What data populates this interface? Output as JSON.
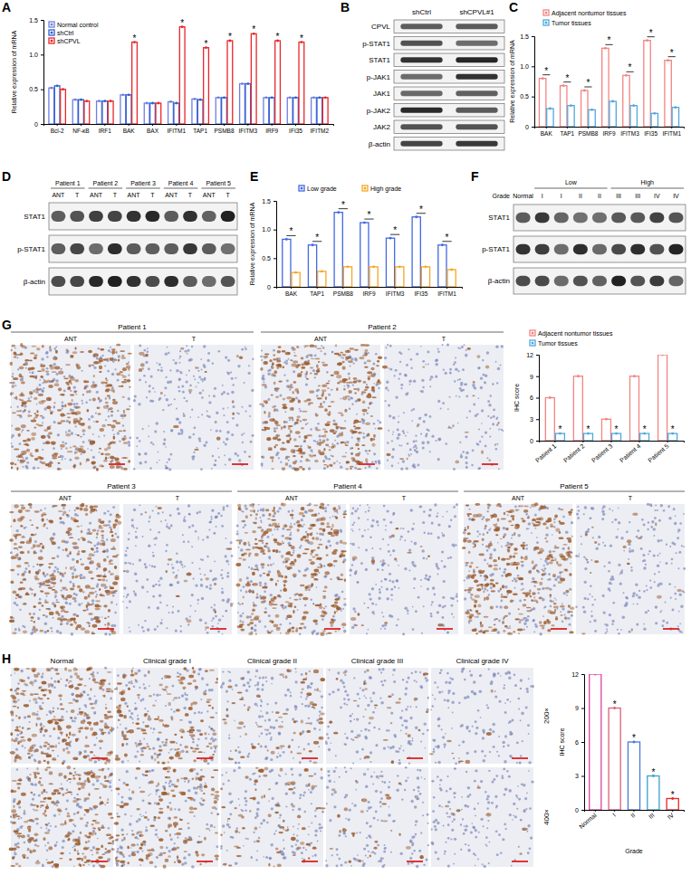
{
  "panel_labels": [
    "A",
    "B",
    "C",
    "D",
    "E",
    "F",
    "G",
    "H"
  ],
  "chart_data": [
    {
      "type": "bar",
      "categories": [
        "Bcl-2",
        "NF-κB",
        "IRF1",
        "BAK",
        "BAX",
        "IFITM1",
        "TAP1",
        "PSMB8",
        "IFITM3",
        "IRF9",
        "IFI35",
        "IFITM2"
      ],
      "series": [
        {
          "name": "Normal control",
          "color": "#6f7fe0",
          "values": [
            0.52,
            0.35,
            0.33,
            0.42,
            0.3,
            0.32,
            0.36,
            0.38,
            0.58,
            0.38,
            0.38,
            0.38
          ]
        },
        {
          "name": "shCtrl",
          "color": "#2f5fd0",
          "values": [
            0.55,
            0.35,
            0.33,
            0.42,
            0.3,
            0.3,
            0.35,
            0.38,
            0.58,
            0.38,
            0.38,
            0.38
          ]
        },
        {
          "name": "shCPVL",
          "color": "#e8262b",
          "values": [
            0.5,
            0.33,
            0.33,
            1.18,
            0.3,
            1.4,
            1.1,
            1.2,
            1.3,
            1.2,
            1.18,
            0.38
          ]
        }
      ],
      "ylim": [
        0,
        1.5
      ],
      "yticks": [
        0,
        0.5,
        {
          "value": 1,
          "label": "1.0"
        },
        1.5
      ],
      "y_label": "Relative expression of mRNA",
      "legend": "upper left",
      "annotations": [
        null,
        null,
        null,
        "*",
        null,
        "*",
        "*",
        "*",
        "*",
        "*",
        "*",
        null
      ]
    },
    {
      "type": "bar",
      "categories": [
        "BAK",
        "TAP1",
        "PSMB8",
        "IRF9",
        "IFITM3",
        "IFI35",
        "IFITM1"
      ],
      "series": [
        {
          "name": "Adjacent nontumor tissues",
          "color": "#f28482",
          "values": [
            0.8,
            0.68,
            0.6,
            1.3,
            0.85,
            1.43,
            1.1
          ]
        },
        {
          "name": "Tumor tissues",
          "color": "#4ea8de",
          "values": [
            0.3,
            0.35,
            0.28,
            0.42,
            0.35,
            0.22,
            0.32
          ]
        }
      ],
      "ylim": [
        0,
        1.5
      ],
      "yticks": [
        0,
        0.5,
        {
          "value": 1,
          "label": "1.0"
        },
        1.5
      ],
      "y_label": "Relative expression of mRNA",
      "legend": "top",
      "annotations": [
        "*",
        "*",
        "*",
        "*",
        "*",
        "*",
        "*"
      ]
    },
    {
      "type": "bar",
      "categories": [
        "BAK",
        "TAP1",
        "PSMB8",
        "IRF9",
        "IFITM3",
        "IFI35",
        "IFITM1"
      ],
      "series": [
        {
          "name": "Low grade",
          "color": "#4169e1",
          "values": [
            0.83,
            0.73,
            1.3,
            1.12,
            0.85,
            1.22,
            0.73
          ]
        },
        {
          "name": "High grade",
          "color": "#f5a623",
          "values": [
            0.25,
            0.27,
            0.35,
            0.35,
            0.35,
            0.35,
            0.3
          ]
        }
      ],
      "ylim": [
        0,
        1.5
      ],
      "yticks": [
        0,
        0.5,
        {
          "value": 1,
          "label": "1.0"
        },
        1.5
      ],
      "y_label": "Relative expression of mRNA",
      "legend": "top",
      "annotations": [
        "*",
        "*",
        "*",
        "*",
        "*",
        "*",
        "*"
      ]
    },
    {
      "type": "bar",
      "categories": [
        "Patient 1",
        "Patient 2",
        "Patient 3",
        "Patient 4",
        "Patient 5"
      ],
      "series": [
        {
          "name": "Adjacent nontumor tissues",
          "color": "#f28482",
          "values": [
            6,
            9,
            3,
            9,
            12
          ]
        },
        {
          "name": "Tumor tissues",
          "color": "#4ea8de",
          "values": [
            1,
            1,
            1,
            1,
            1
          ]
        }
      ],
      "ylim": [
        0,
        12
      ],
      "yticks": [
        0,
        3,
        6,
        9,
        12
      ],
      "y_label": "IHC score",
      "legend": "top",
      "annotations": [
        "*",
        "*",
        "*",
        "*",
        "*"
      ]
    },
    {
      "type": "bar",
      "categories": [
        "Normal",
        "I",
        "II",
        "III",
        "IV"
      ],
      "values": [
        12,
        9,
        6,
        3,
        1
      ],
      "colors": [
        "#e040a0",
        "#e0607a",
        "#4a78d8",
        "#3aa0c8",
        "#e8262b"
      ],
      "ylim": [
        0,
        12
      ],
      "yticks": [
        0,
        3,
        6,
        9,
        12
      ],
      "y_label": "IHC score",
      "x_label": "Grade",
      "annotations": [
        null,
        "*",
        "*",
        "*",
        "*"
      ]
    }
  ],
  "blots": [
    {
      "columns": [
        "shCtrl",
        "shCPVL#1"
      ],
      "rows": [
        "CPVL",
        "p-STAT1",
        "STAT1",
        "p-JAK1",
        "JAK1",
        "p-JAK2",
        "JAK2",
        "β-actin"
      ]
    },
    {
      "groups": [
        "Patient 1",
        "Patient 2",
        "Patient 3",
        "Patient 4",
        "Patient 5"
      ],
      "lanes": [
        "ANT",
        "T"
      ],
      "rows": [
        "STAT1",
        "p-STAT1",
        "β-actin"
      ]
    },
    {
      "header": "Grade",
      "lane_groups": [
        {
          "lanes": [
            "Normal"
          ]
        },
        {
          "label": "Low",
          "lanes": [
            "I",
            "I",
            "II",
            "II"
          ]
        },
        {
          "label": "High",
          "lanes": [
            "III",
            "III",
            "IV",
            "IV"
          ]
        }
      ],
      "rows": [
        "STAT1",
        "p-STAT1",
        "β-actin"
      ]
    }
  ],
  "ihc_g": {
    "patients": [
      "Patient 1",
      "Patient 2",
      "Patient 3",
      "Patient 4",
      "Patient 5"
    ],
    "lanes": [
      "ANT",
      "T"
    ]
  },
  "ihc_h": {
    "columns": [
      "Normal",
      "Clinical grade I",
      "Clinical grade II",
      "Clinical grade III",
      "Clinical grade IV"
    ],
    "magnifications": [
      "200×",
      "400×"
    ]
  }
}
